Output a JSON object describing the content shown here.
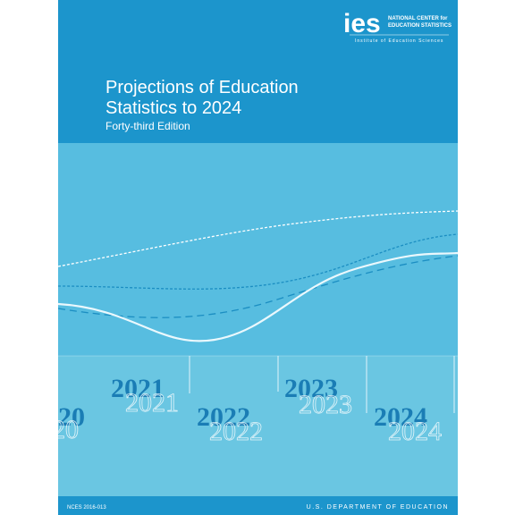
{
  "header": {
    "logo": "ies",
    "center_line1": "NATIONAL CENTER for",
    "center_line2": "EDUCATION STATISTICS",
    "institute": "Institute of Education Sciences"
  },
  "title": {
    "line1": "Projections of Education",
    "line2": "Statistics to 2024",
    "edition": "Forty-third Edition"
  },
  "years": [
    "20",
    "2021",
    "2022",
    "2023",
    "2024"
  ],
  "footer": {
    "report_id": "NCES 2016-013",
    "department": "U.S. DEPARTMENT OF EDUCATION"
  }
}
